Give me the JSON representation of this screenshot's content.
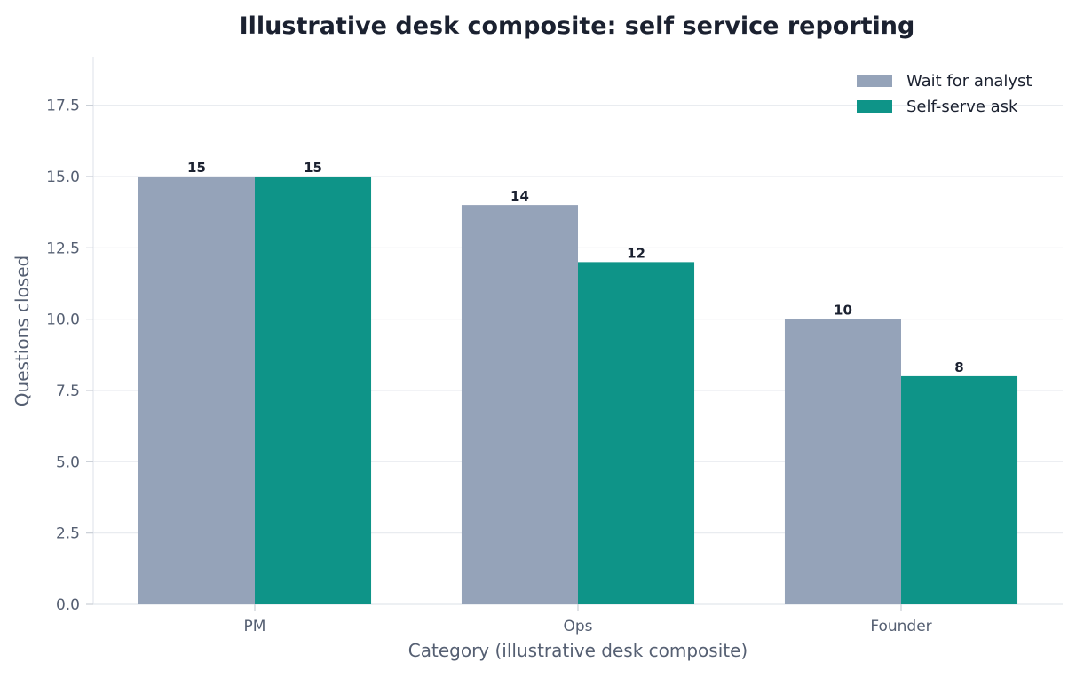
{
  "chart_data": {
    "type": "bar",
    "title": "Illustrative desk composite: self service reporting",
    "xlabel": "Category (illustrative desk composite)",
    "ylabel": "Questions closed",
    "categories": [
      "PM",
      "Ops",
      "Founder"
    ],
    "series": [
      {
        "name": "Wait for analyst",
        "values": [
          15,
          14,
          10
        ],
        "color": "#95a3b9"
      },
      {
        "name": "Self-serve ask",
        "values": [
          15,
          12,
          8
        ],
        "color": "#0e9488"
      }
    ],
    "ylim": [
      0,
      19.2
    ],
    "yticks": [
      "0.0",
      "2.5",
      "5.0",
      "7.5",
      "10.0",
      "12.5",
      "15.0",
      "17.5"
    ],
    "grid": true,
    "legend_position": "top-right"
  }
}
